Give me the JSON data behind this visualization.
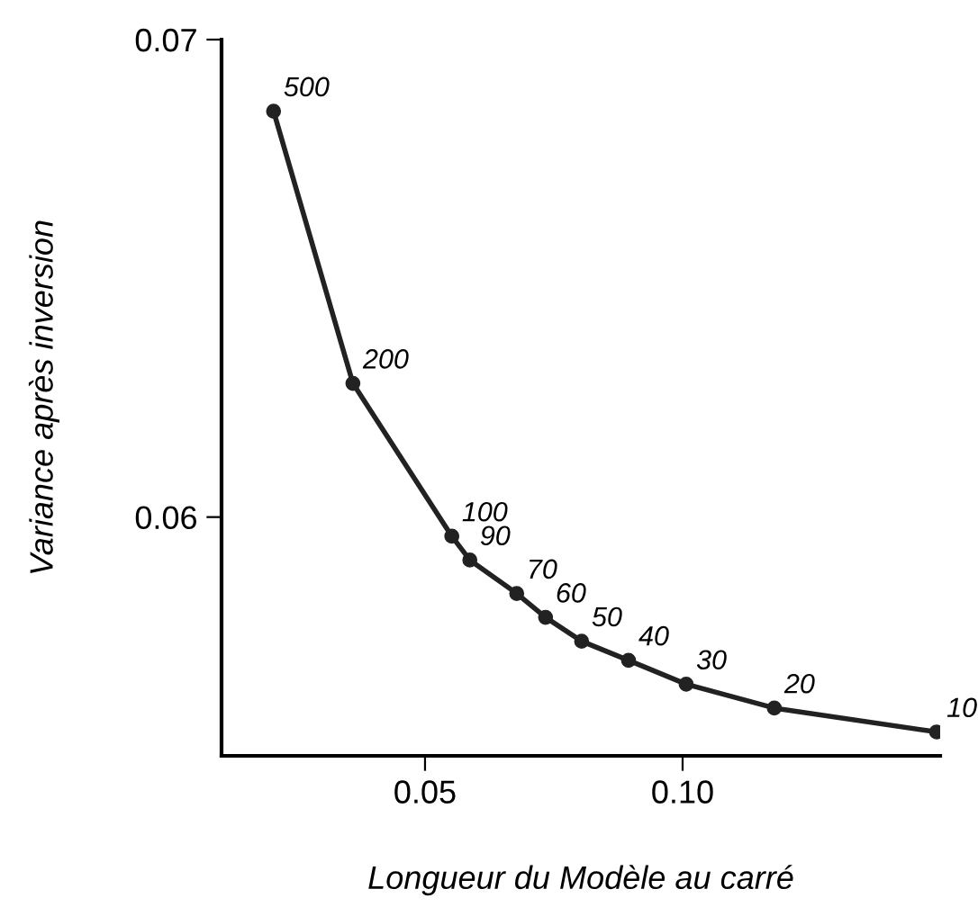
{
  "chart_data": {
    "type": "line",
    "xlabel": "Longueur du Modèle au carré",
    "ylabel": "Variance après inversion",
    "x": [
      0.0206,
      0.036,
      0.0552,
      0.0587,
      0.0678,
      0.0734,
      0.0804,
      0.0895,
      0.1007,
      0.1178,
      0.1493
    ],
    "series": [
      {
        "color": "#222222",
        "values": [
          0.0685,
          0.0628,
          0.0596,
          0.0591,
          0.0584,
          0.0579,
          0.0574,
          0.057,
          0.0565,
          0.056,
          0.0555
        ]
      }
    ],
    "annotations": [
      {
        "text": "500",
        "x": 0.0206,
        "y": 0.0685
      },
      {
        "text": "200",
        "x": 0.036,
        "y": 0.0628
      },
      {
        "text": "100",
        "x": 0.0552,
        "y": 0.0596
      },
      {
        "text": "90",
        "x": 0.0587,
        "y": 0.0591
      },
      {
        "text": "70",
        "x": 0.0678,
        "y": 0.0584
      },
      {
        "text": "60",
        "x": 0.0734,
        "y": 0.0579
      },
      {
        "text": "50",
        "x": 0.0804,
        "y": 0.0574
      },
      {
        "text": "40",
        "x": 0.0895,
        "y": 0.057
      },
      {
        "text": "30",
        "x": 0.1007,
        "y": 0.0565
      },
      {
        "text": "20",
        "x": 0.1178,
        "y": 0.056
      },
      {
        "text": "10",
        "x": 0.1493,
        "y": 0.0555
      }
    ],
    "xlim": [
      0.0105,
      0.15
    ],
    "ylim": [
      0.055,
      0.07
    ],
    "xticks": [
      0.05,
      {
        "value": 0.1,
        "label": "0.10"
      }
    ],
    "yticks": [
      0.06,
      0.07
    ],
    "grid": false,
    "legend": false,
    "marker": "circle",
    "line_style": "solid"
  }
}
